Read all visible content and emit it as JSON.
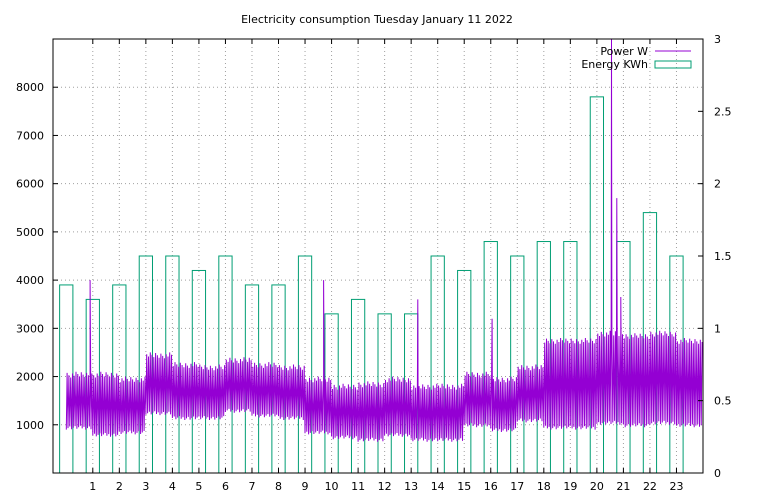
{
  "chart_data": {
    "type": "bar",
    "title": "Electricity consumption Tuesday January 11 2022",
    "xlim": [
      -0.5,
      24
    ],
    "x_ticks": [
      1,
      2,
      3,
      4,
      5,
      6,
      7,
      8,
      9,
      10,
      11,
      12,
      13,
      14,
      15,
      16,
      17,
      18,
      19,
      20,
      21,
      22,
      23
    ],
    "y_left": {
      "min": 0,
      "max": 9000,
      "ticks": [
        1000,
        2000,
        3000,
        4000,
        5000,
        6000,
        7000,
        8000
      ]
    },
    "y_right": {
      "min": 0,
      "max": 3,
      "ticks": [
        0,
        0.5,
        1,
        1.5,
        2,
        2.5,
        3
      ],
      "tick_labels": [
        "0",
        "0.5",
        "1",
        "1.5",
        "2",
        "2.5",
        "3"
      ]
    },
    "grid": true,
    "legend_position": "top-right",
    "colors": {
      "power": "#9400d3",
      "energy": "#009e73"
    },
    "series": [
      {
        "name": "Power W",
        "type": "line",
        "axis": "left",
        "samples_per_hour": 30,
        "hourly_low": [
          900,
          750,
          800,
          1200,
          1100,
          1100,
          1250,
          1150,
          1100,
          800,
          700,
          650,
          750,
          650,
          650,
          950,
          850,
          1050,
          900,
          900,
          1000,
          950,
          1000,
          950
        ],
        "hourly_high": [
          2100,
          2100,
          2000,
          2500,
          2300,
          2250,
          2400,
          2300,
          2250,
          2000,
          1850,
          1900,
          2000,
          1850,
          1850,
          2100,
          2000,
          2250,
          2800,
          2800,
          2950,
          2900,
          2950,
          2800
        ],
        "spikes": [
          {
            "x": 0.9,
            "y": 4000
          },
          {
            "x": 9.7,
            "y": 4000
          },
          {
            "x": 13.25,
            "y": 3600
          },
          {
            "x": 16.05,
            "y": 3200
          },
          {
            "x": 20.55,
            "y": 9000
          },
          {
            "x": 20.75,
            "y": 5700
          },
          {
            "x": 20.9,
            "y": 3650
          }
        ]
      },
      {
        "name": "Energy KWh",
        "type": "bar",
        "axis": "right",
        "categories": [
          0,
          1,
          2,
          3,
          4,
          5,
          6,
          7,
          8,
          9,
          10,
          11,
          12,
          13,
          14,
          15,
          16,
          17,
          18,
          19,
          20,
          21,
          22,
          23
        ],
        "values": [
          1.3,
          1.2,
          1.3,
          1.5,
          1.5,
          1.4,
          1.5,
          1.3,
          1.3,
          1.5,
          1.1,
          1.2,
          1.1,
          1.1,
          1.5,
          1.4,
          1.6,
          1.5,
          1.6,
          1.6,
          2.6,
          1.6,
          1.8,
          1.5
        ]
      }
    ]
  }
}
